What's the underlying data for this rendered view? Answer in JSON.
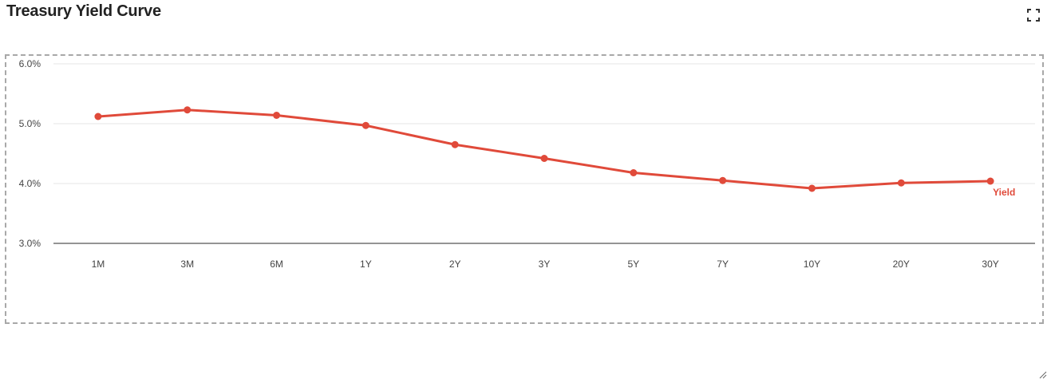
{
  "header": {
    "title": "Treasury Yield Curve",
    "expand_icon": "expand-icon"
  },
  "colors": {
    "series": "#e04a3a",
    "grid": "#e6e6e6",
    "axis": "#555555",
    "border": "#a8a8a8"
  },
  "chart_data": {
    "type": "line",
    "title": "Treasury Yield Curve",
    "categories": [
      "1M",
      "3M",
      "6M",
      "1Y",
      "2Y",
      "3Y",
      "5Y",
      "7Y",
      "10Y",
      "20Y",
      "30Y"
    ],
    "series": [
      {
        "name": "Yield",
        "values": [
          5.12,
          5.23,
          5.14,
          4.97,
          4.65,
          4.42,
          4.18,
          4.05,
          3.92,
          4.01,
          4.04
        ]
      }
    ],
    "y_ticks": [
      "6.0%",
      "5.0%",
      "4.0%",
      "3.0%"
    ],
    "y_tick_values": [
      6,
      5,
      4,
      3
    ],
    "ylim": [
      3,
      6
    ],
    "xlabel": "",
    "ylabel": "",
    "grid": true,
    "legend": "end-of-line label"
  }
}
